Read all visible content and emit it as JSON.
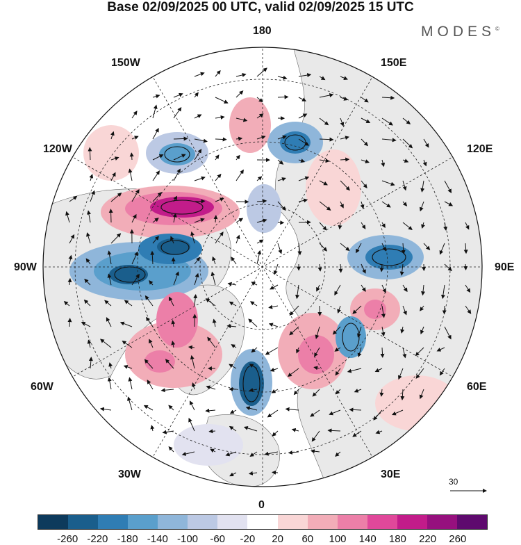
{
  "title": "Base 02/09/2025 00 UTC, valid 02/09/2025 15 UTC",
  "brand": "MODES",
  "brand_mark": "©",
  "longitude_labels": {
    "top": "180",
    "bottom": "0",
    "left": "90W",
    "right": "90E",
    "upper_left_1": "150W",
    "upper_left_2": "120W",
    "lower_left_1": "60W",
    "lower_left_2": "30W",
    "upper_right_1": "150E",
    "upper_right_2": "120E",
    "lower_right_1": "60E",
    "lower_right_2": "30E"
  },
  "reference_vector_label": "30",
  "colorbar": {
    "colors": [
      "#0d3a5c",
      "#1a5e8c",
      "#2f7db4",
      "#5a9fcc",
      "#8fb6da",
      "#bcc9e4",
      "#e2e2f0",
      "#ffffff",
      "#f9d6d6",
      "#f2adb8",
      "#ec7fa8",
      "#e0489a",
      "#c21c8a",
      "#96107e",
      "#5e0a6e"
    ],
    "ticks": [
      "-260",
      "-220",
      "-180",
      "-140",
      "-100",
      "-60",
      "-20",
      "20",
      "60",
      "100",
      "140",
      "180",
      "220",
      "260"
    ]
  },
  "colors": {
    "land": "#e9e9e9",
    "ocean": "#ffffff",
    "negative_strong": "#1a5e8c",
    "negative_weak": "#bcc9e4",
    "positive_weak": "#f2adb8",
    "positive_strong": "#c21c8a"
  }
}
